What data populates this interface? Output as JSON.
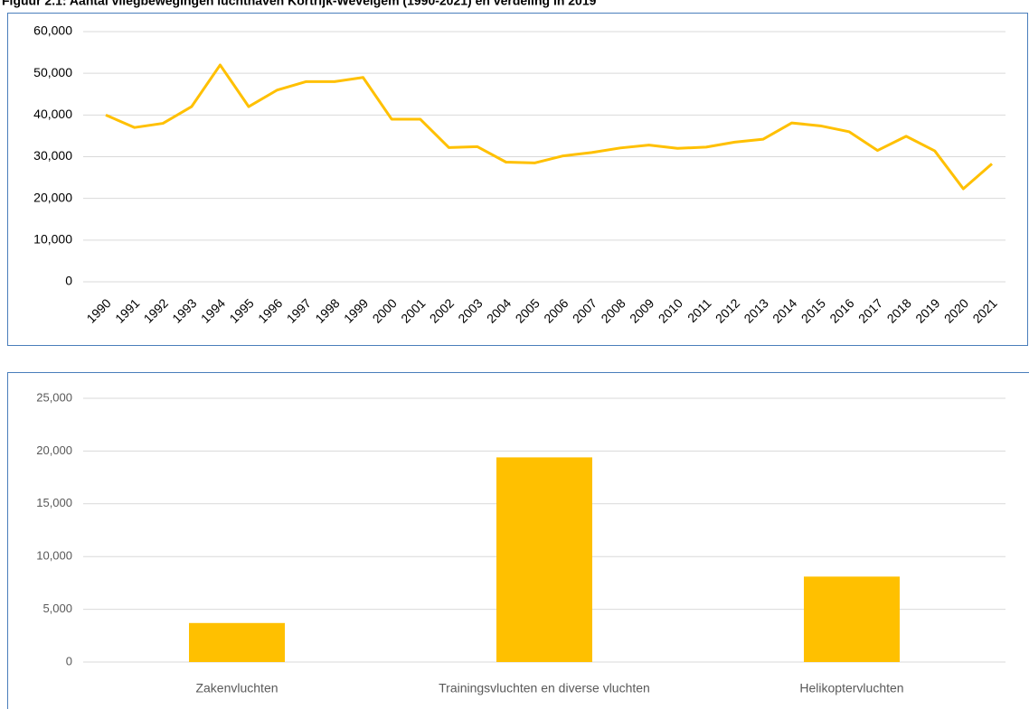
{
  "page_title": "Figuur 2.1: Aantal vliegbewegingen luchthaven Kortrijk-Wevelgem (1990-2021) en verdeling in 2019",
  "chart_data": [
    {
      "type": "line",
      "color": "#FFC000",
      "grid": true,
      "categories": [
        "1990",
        "1991",
        "1992",
        "1993",
        "1994",
        "1995",
        "1996",
        "1997",
        "1998",
        "1999",
        "2000",
        "2001",
        "2002",
        "2003",
        "2004",
        "2005",
        "2006",
        "2007",
        "2008",
        "2009",
        "2010",
        "2011",
        "2012",
        "2013",
        "2014",
        "2015",
        "2016",
        "2017",
        "2018",
        "2019",
        "2020",
        "2021"
      ],
      "values": [
        40000,
        37000,
        38000,
        42000,
        52000,
        42000,
        46000,
        48000,
        48000,
        49000,
        39000,
        39000,
        32200,
        32400,
        28700,
        28500,
        30200,
        31000,
        32100,
        32800,
        32000,
        32300,
        33500,
        34200,
        38100,
        37400,
        36000,
        31500,
        34900,
        31400,
        22300,
        28300
      ],
      "ylim": [
        0,
        60000
      ],
      "yticks": [
        0,
        {
          "value": 10000,
          "label": "10,000"
        },
        {
          "value": 20000,
          "label": "20,000"
        },
        {
          "value": 30000,
          "label": "30,000"
        },
        {
          "value": 40000,
          "label": "40,000"
        },
        {
          "value": 50000,
          "label": "50,000"
        },
        {
          "value": 60000,
          "label": "60,000"
        }
      ]
    },
    {
      "type": "bar",
      "color": "#FFC000",
      "grid": true,
      "categories": [
        "Zakenvluchten",
        "Trainingsvluchten en diverse vluchten",
        "Helikoptervluchten"
      ],
      "values": [
        3700,
        19400,
        8100
      ],
      "ylim": [
        0,
        25000
      ],
      "yticks": [
        0,
        {
          "value": 5000,
          "label": "5,000"
        },
        {
          "value": 10000,
          "label": "10,000"
        },
        {
          "value": 15000,
          "label": "15,000"
        },
        {
          "value": 20000,
          "label": "20,000"
        },
        {
          "value": 25000,
          "label": "25,000"
        }
      ]
    }
  ]
}
